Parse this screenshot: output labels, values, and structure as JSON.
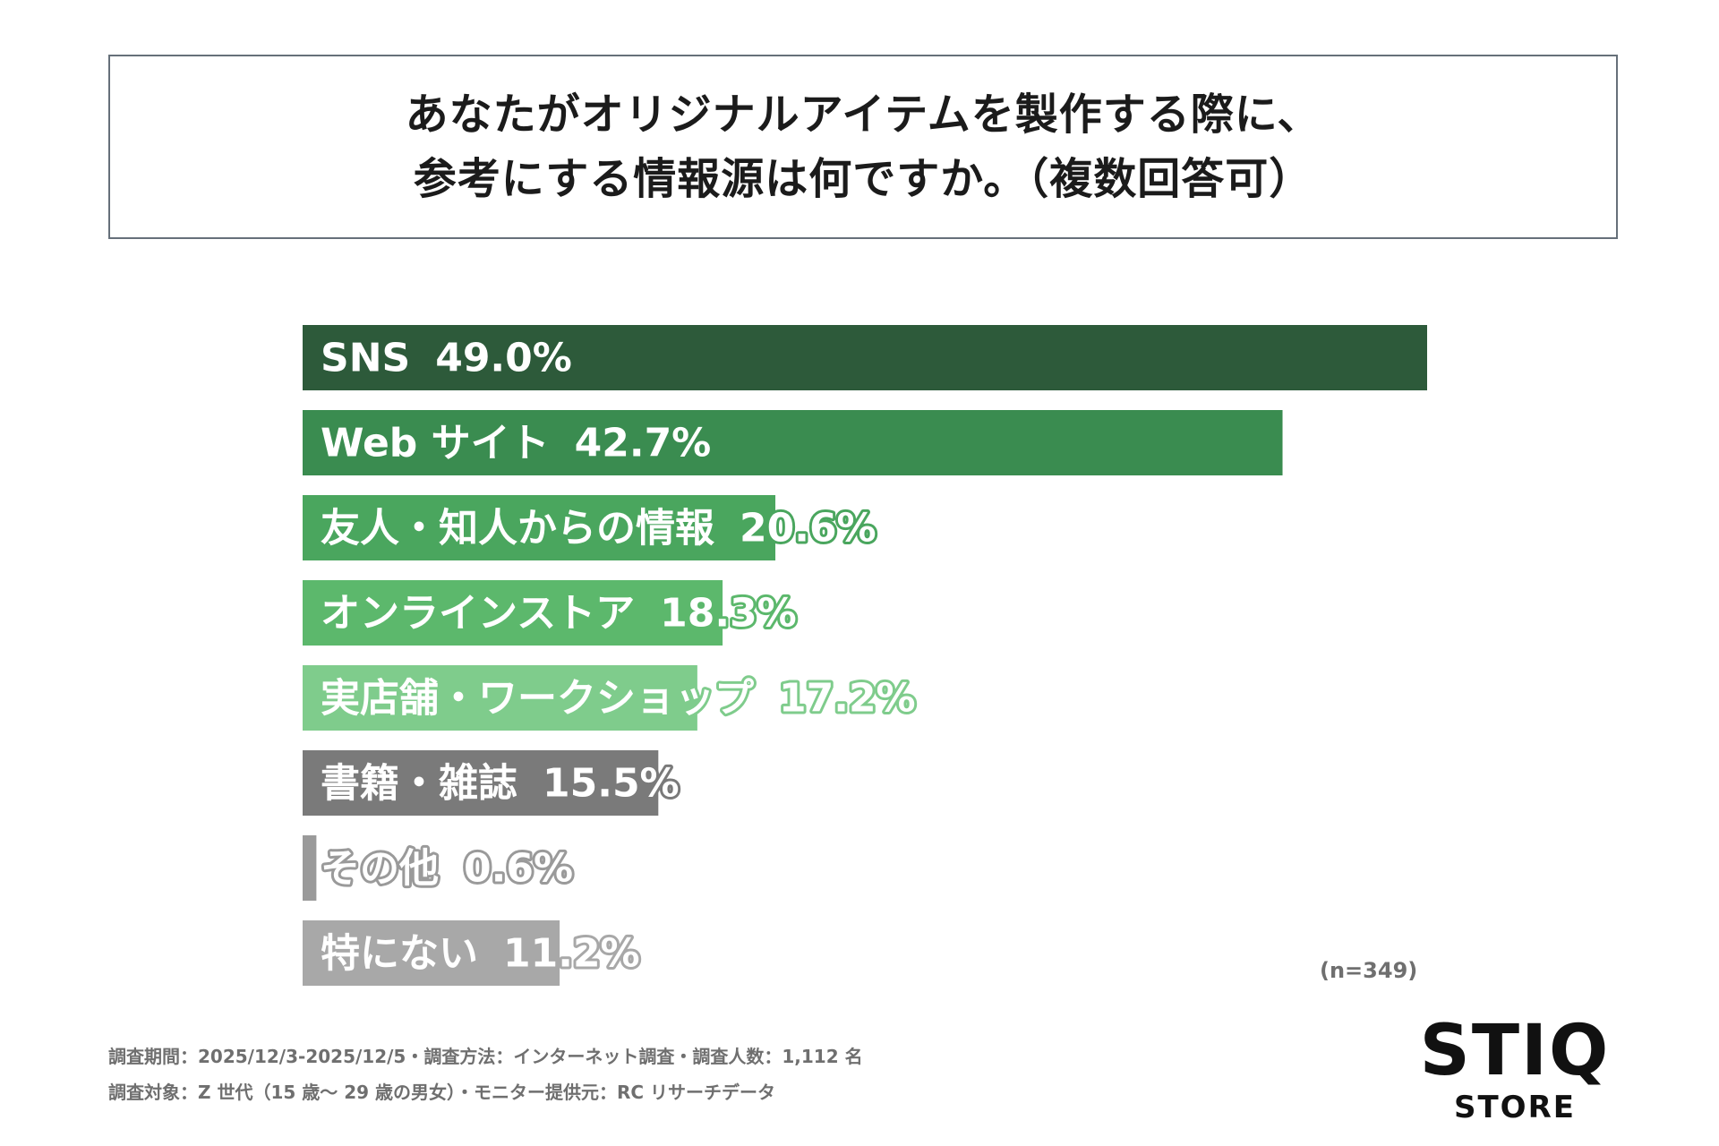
{
  "title": {
    "line1": "あなたがオリジナルアイテムを製作する際に、",
    "line2": "参考にする情報源は何ですか。（複数回答可）"
  },
  "sample_note": "(n=349)",
  "footer": {
    "line1": "調査期間：2025/12/3-2025/12/5・調査方法：インターネット調査・調査人数：1,112 名",
    "line2": "調査対象：Z 世代（15 歳〜 29 歳の男女）・モニター提供元：RC リサーチデータ"
  },
  "logo": {
    "main": "STIQ",
    "sub": "STORE"
  },
  "chart_data": {
    "type": "bar",
    "orientation": "horizontal",
    "categories": [
      "SNS",
      "Web サイト",
      "友人・知人からの情報",
      "オンラインストア",
      "実店舗・ワークショップ",
      "書籍・雑誌",
      "その他",
      "特にない"
    ],
    "values": [
      49.0,
      42.7,
      20.6,
      18.3,
      17.2,
      15.5,
      0.6,
      11.2
    ],
    "value_labels": [
      "49.0%",
      "42.7%",
      "20.6%",
      "18.3%",
      "17.2%",
      "15.5%",
      "0.6%",
      "11.2%"
    ],
    "colors": [
      "#2d5a3a",
      "#3a8c50",
      "#4aa65e",
      "#5cb86c",
      "#7fcc8c",
      "#7a7a7a",
      "#9a9a9a",
      "#a8a8a8"
    ],
    "xlim": [
      0,
      49.0
    ],
    "grid": false
  }
}
